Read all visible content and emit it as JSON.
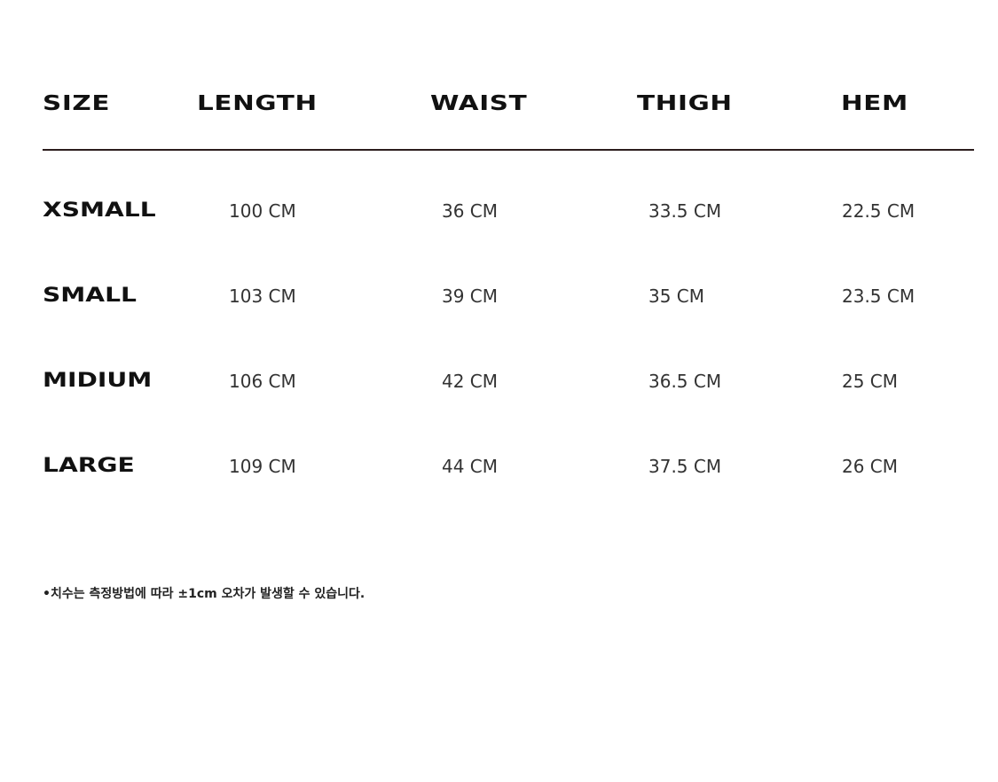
{
  "table": {
    "headers": [
      "SIZE",
      "LENGTH",
      "WAIST",
      "THIGH",
      "HEM"
    ],
    "rows": [
      {
        "size": "XSMALL",
        "length": "100 CM",
        "waist": "36 CM",
        "thigh": "33.5 CM",
        "hem": "22.5 CM"
      },
      {
        "size": "SMALL",
        "length": "103 CM",
        "waist": "39 CM",
        "thigh": "35 CM",
        "hem": "23.5 CM"
      },
      {
        "size": "MIDIUM",
        "length": "106 CM",
        "waist": "42 CM",
        "thigh": "36.5 CM",
        "hem": "25 CM"
      },
      {
        "size": "LARGE",
        "length": "109 CM",
        "waist": "44 CM",
        "thigh": "37.5 CM",
        "hem": "26 CM"
      }
    ]
  },
  "note": "•치수는 측정방법에 따라 ±1cm 오차가 발생할 수 있습니다."
}
